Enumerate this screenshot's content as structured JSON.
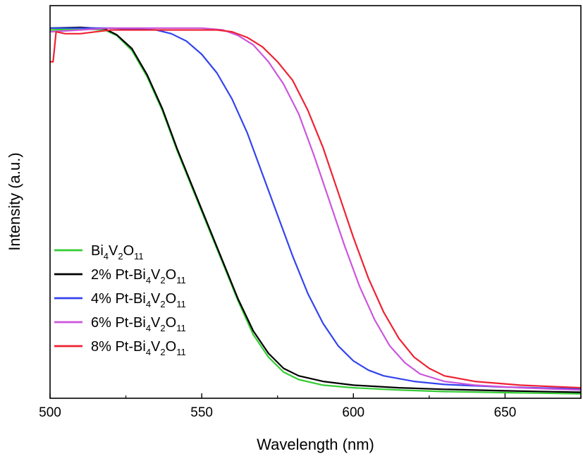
{
  "chart_data": {
    "type": "line",
    "xlabel": "Wavelength (nm)",
    "ylabel": "Intensity (a.u.)",
    "xlim": [
      500,
      675
    ],
    "ylim": [
      0,
      1.05
    ],
    "x_ticks": [
      500,
      550,
      600,
      650
    ],
    "x_tick_labels": [
      "500",
      "550",
      "600",
      "650"
    ],
    "y_tick_labels_shown": false,
    "grid": false,
    "legend_position": "lower-left",
    "series": [
      {
        "name": "Bi4V2O11",
        "legend": {
          "parts": [
            {
              "t": "Bi"
            },
            {
              "t": "4",
              "sub": true
            },
            {
              "t": "V"
            },
            {
              "t": "2",
              "sub": true
            },
            {
              "t": "O"
            },
            {
              "t": "11",
              "sub": true
            }
          ]
        },
        "color": "#33cc33",
        "points": [
          [
            500,
            0.985
          ],
          [
            510,
            0.988
          ],
          [
            518,
            0.985
          ],
          [
            522,
            0.97
          ],
          [
            527,
            0.93
          ],
          [
            532,
            0.86
          ],
          [
            537,
            0.77
          ],
          [
            542,
            0.66
          ],
          [
            547,
            0.56
          ],
          [
            552,
            0.46
          ],
          [
            557,
            0.36
          ],
          [
            562,
            0.26
          ],
          [
            567,
            0.17
          ],
          [
            572,
            0.11
          ],
          [
            577,
            0.07
          ],
          [
            582,
            0.05
          ],
          [
            590,
            0.035
          ],
          [
            600,
            0.028
          ],
          [
            615,
            0.022
          ],
          [
            630,
            0.018
          ],
          [
            650,
            0.015
          ],
          [
            675,
            0.012
          ]
        ]
      },
      {
        "name": "2% Pt-Bi4V2O11",
        "legend": {
          "parts": [
            {
              "t": "2% Pt-Bi"
            },
            {
              "t": "4",
              "sub": true
            },
            {
              "t": "V"
            },
            {
              "t": "2",
              "sub": true
            },
            {
              "t": "O"
            },
            {
              "t": "11",
              "sub": true
            }
          ]
        },
        "color": "#000000",
        "points": [
          [
            500,
            0.99
          ],
          [
            510,
            0.992
          ],
          [
            518,
            0.988
          ],
          [
            522,
            0.972
          ],
          [
            527,
            0.935
          ],
          [
            532,
            0.865
          ],
          [
            537,
            0.775
          ],
          [
            542,
            0.665
          ],
          [
            547,
            0.565
          ],
          [
            552,
            0.465
          ],
          [
            557,
            0.365
          ],
          [
            562,
            0.265
          ],
          [
            567,
            0.18
          ],
          [
            572,
            0.12
          ],
          [
            577,
            0.08
          ],
          [
            582,
            0.06
          ],
          [
            590,
            0.045
          ],
          [
            600,
            0.035
          ],
          [
            615,
            0.028
          ],
          [
            630,
            0.024
          ],
          [
            650,
            0.02
          ],
          [
            675,
            0.016
          ]
        ]
      },
      {
        "name": "4% Pt-Bi4V2O11",
        "legend": {
          "parts": [
            {
              "t": "4% Pt-Bi"
            },
            {
              "t": "4",
              "sub": true
            },
            {
              "t": "V"
            },
            {
              "t": "2",
              "sub": true
            },
            {
              "t": "O"
            },
            {
              "t": "11",
              "sub": true
            }
          ]
        },
        "color": "#3344ee",
        "points": [
          [
            500,
            0.99
          ],
          [
            520,
            0.99
          ],
          [
            535,
            0.985
          ],
          [
            540,
            0.975
          ],
          [
            545,
            0.955
          ],
          [
            550,
            0.92
          ],
          [
            555,
            0.87
          ],
          [
            560,
            0.8
          ],
          [
            565,
            0.71
          ],
          [
            570,
            0.6
          ],
          [
            575,
            0.49
          ],
          [
            580,
            0.38
          ],
          [
            585,
            0.28
          ],
          [
            590,
            0.2
          ],
          [
            595,
            0.14
          ],
          [
            600,
            0.1
          ],
          [
            605,
            0.075
          ],
          [
            610,
            0.06
          ],
          [
            620,
            0.045
          ],
          [
            630,
            0.037
          ],
          [
            650,
            0.03
          ],
          [
            675,
            0.025
          ]
        ]
      },
      {
        "name": "6% Pt-Bi4V2O11",
        "legend": {
          "parts": [
            {
              "t": "6% Pt-Bi"
            },
            {
              "t": "4",
              "sub": true
            },
            {
              "t": "V"
            },
            {
              "t": "2",
              "sub": true
            },
            {
              "t": "O"
            },
            {
              "t": "11",
              "sub": true
            }
          ]
        },
        "color": "#cc55dd",
        "points": [
          [
            500,
            0.98
          ],
          [
            520,
            0.99
          ],
          [
            540,
            0.99
          ],
          [
            550,
            0.99
          ],
          [
            557,
            0.985
          ],
          [
            562,
            0.97
          ],
          [
            567,
            0.945
          ],
          [
            572,
            0.9
          ],
          [
            577,
            0.84
          ],
          [
            582,
            0.76
          ],
          [
            587,
            0.65
          ],
          [
            592,
            0.53
          ],
          [
            597,
            0.41
          ],
          [
            602,
            0.3
          ],
          [
            607,
            0.21
          ],
          [
            612,
            0.14
          ],
          [
            617,
            0.095
          ],
          [
            622,
            0.065
          ],
          [
            630,
            0.045
          ],
          [
            640,
            0.035
          ],
          [
            655,
            0.028
          ],
          [
            675,
            0.022
          ]
        ]
      },
      {
        "name": "8% Pt-Bi4V2O11",
        "legend": {
          "parts": [
            {
              "t": "8% Pt-Bi"
            },
            {
              "t": "4",
              "sub": true
            },
            {
              "t": "V"
            },
            {
              "t": "2",
              "sub": true
            },
            {
              "t": "O"
            },
            {
              "t": "11",
              "sub": true
            }
          ]
        },
        "color": "#ee2233",
        "points": [
          [
            500,
            0.9
          ],
          [
            501,
            0.9
          ],
          [
            502,
            0.98
          ],
          [
            505,
            0.975
          ],
          [
            510,
            0.975
          ],
          [
            520,
            0.985
          ],
          [
            540,
            0.985
          ],
          [
            555,
            0.985
          ],
          [
            560,
            0.98
          ],
          [
            565,
            0.965
          ],
          [
            570,
            0.94
          ],
          [
            575,
            0.9
          ],
          [
            580,
            0.85
          ],
          [
            585,
            0.77
          ],
          [
            590,
            0.67
          ],
          [
            595,
            0.55
          ],
          [
            600,
            0.43
          ],
          [
            605,
            0.32
          ],
          [
            610,
            0.23
          ],
          [
            615,
            0.16
          ],
          [
            620,
            0.11
          ],
          [
            625,
            0.08
          ],
          [
            630,
            0.06
          ],
          [
            640,
            0.045
          ],
          [
            655,
            0.035
          ],
          [
            675,
            0.028
          ]
        ]
      }
    ]
  }
}
